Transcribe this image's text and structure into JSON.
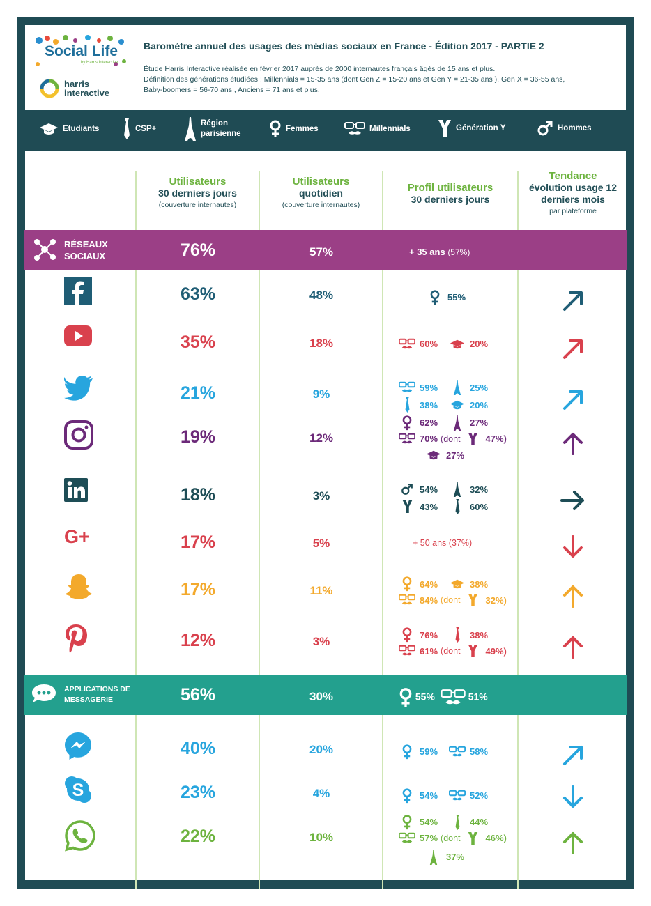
{
  "header": {
    "logo_text": "Social Life",
    "logo_sub": "by Harris Interactive",
    "brand": "harris interactive",
    "title": "Baromètre annuel des usages des médias sociaux en France - Édition 2017 - PARTIE 2",
    "desc1": "Étude Harris Interactive réalisée en février 2017 auprès de 2000 internautes français âgés de 15 ans et plus.",
    "desc2": "Définition des générations étudiées : Millennials = 15-35 ans (dont Gen Z = 15-20 ans et Gen Y = 21-35 ans ), Gen X = 36-55 ans,",
    "desc3": "Baby-boomers = 56-70 ans , Anciens = 71 ans et plus."
  },
  "legend": [
    {
      "icon": "graduation-cap-icon",
      "label": "Etudiants"
    },
    {
      "icon": "tie-icon",
      "label": "CSP+"
    },
    {
      "icon": "eiffel-tower-icon",
      "label": "Région parisienne"
    },
    {
      "icon": "female-icon",
      "label": "Femmes"
    },
    {
      "icon": "glasses-mustache-icon",
      "label": "Millennials"
    },
    {
      "icon": "y-icon",
      "label": "Génération Y"
    },
    {
      "icon": "male-icon",
      "label": "Hommes"
    }
  ],
  "columns": {
    "c1_green": "Utilisateurs",
    "c1_dark": "30 derniers jours",
    "c1_small": "(couverture internautes)",
    "c2_green": "Utilisateurs",
    "c2_dark": "quotidien",
    "c2_small": "(couverture internautes)",
    "c3_green": "Profil utilisateurs",
    "c3_dark": "30 derniers jours",
    "c4_green": "Tendance",
    "c4_dark": "évolution usage 12 derniers mois",
    "c4_small": "par plateforme"
  },
  "bands": {
    "social": {
      "label": "RÉSEAUX SOCIAUX",
      "monthly": "76%",
      "daily": "57%",
      "profile_bold": "+ 35 ans",
      "profile_pct": "(57%)",
      "color": "#9b3f86"
    },
    "messaging": {
      "label": "APPLICATIONS DE MESSAGERIE",
      "monthly": "56%",
      "daily": "30%",
      "p1": "55%",
      "p2": "51%",
      "color": "#23a08e"
    }
  },
  "platforms": [
    {
      "name": "facebook",
      "monthly": "63%",
      "daily": "48%",
      "color": "#1f5d75",
      "trend": "up-right",
      "profile": [
        "55%"
      ]
    },
    {
      "name": "youtube",
      "monthly": "35%",
      "daily": "18%",
      "color": "#d9414d",
      "trend": "up-right",
      "profile": [
        "60%",
        "20%"
      ]
    },
    {
      "name": "twitter",
      "monthly": "21%",
      "daily": "9%",
      "color": "#27a5de",
      "trend": "up-right",
      "profile": [
        "59%",
        "25%",
        "38%",
        "20%"
      ]
    },
    {
      "name": "instagram",
      "monthly": "19%",
      "daily": "12%",
      "color": "#6c2a79",
      "trend": "up",
      "profile": [
        "62%",
        "27%",
        "70%",
        "(dont",
        "47%)",
        "27%"
      ]
    },
    {
      "name": "linkedin",
      "monthly": "18%",
      "daily": "3%",
      "color": "#1e4d56",
      "trend": "right",
      "profile": [
        "54%",
        "32%",
        "43%",
        "60%"
      ]
    },
    {
      "name": "google-plus",
      "monthly": "17%",
      "daily": "5%",
      "color": "#d9414d",
      "trend": "down",
      "profile": [
        "+ 50 ans (37%)"
      ]
    },
    {
      "name": "snapchat",
      "monthly": "17%",
      "daily": "11%",
      "color": "#f3a92c",
      "trend": "up",
      "profile": [
        "64%",
        "38%",
        "84%",
        "(dont",
        "32%)"
      ]
    },
    {
      "name": "pinterest",
      "monthly": "12%",
      "daily": "3%",
      "color": "#d9414d",
      "trend": "up",
      "profile": [
        "76%",
        "38%",
        "61%",
        "(dont",
        "49%)"
      ]
    },
    {
      "name": "messenger",
      "monthly": "40%",
      "daily": "20%",
      "color": "#27a5de",
      "trend": "up-right",
      "profile": [
        "59%",
        "58%"
      ]
    },
    {
      "name": "skype",
      "monthly": "23%",
      "daily": "4%",
      "color": "#27a5de",
      "trend": "down",
      "profile": [
        "54%",
        "52%"
      ]
    },
    {
      "name": "whatsapp",
      "monthly": "22%",
      "daily": "10%",
      "color": "#6db33f",
      "trend": "up",
      "profile": [
        "54%",
        "44%",
        "57%",
        "(dont",
        "46%)",
        "37%"
      ]
    }
  ]
}
